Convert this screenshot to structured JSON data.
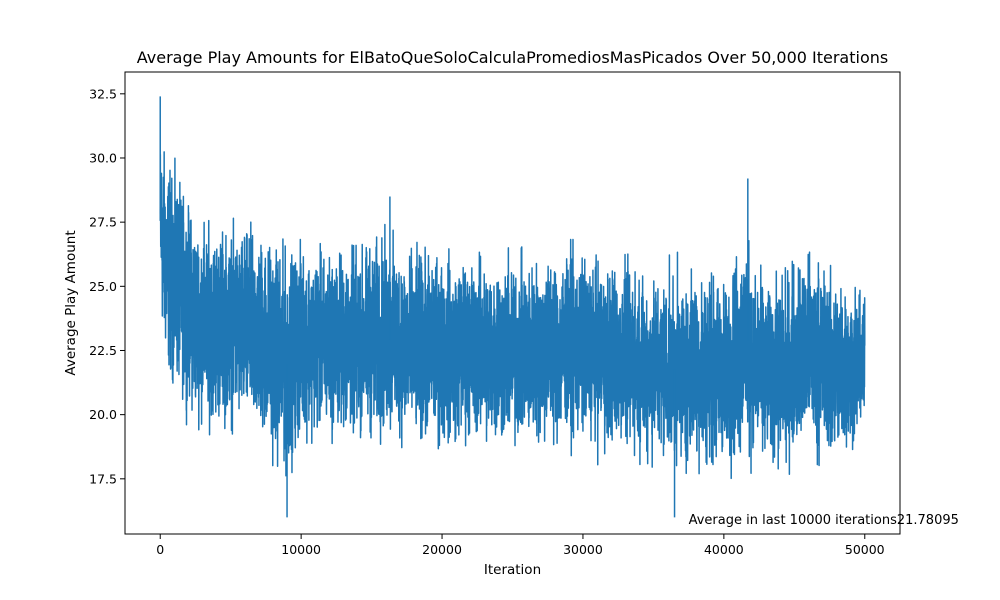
{
  "chart_data": {
    "type": "line",
    "title": "Average Play Amounts for ElBatoQueSoloCalculaPromediosMasPicados Over 50,000 Iterations",
    "xlabel": "Iteration",
    "ylabel": "Average Play Amount",
    "xlim": [
      -2500,
      52500
    ],
    "ylim": [
      15.35,
      33.35
    ],
    "xticks": [
      0,
      10000,
      20000,
      30000,
      40000,
      50000
    ],
    "xtick_labels": [
      "0",
      "10000",
      "20000",
      "30000",
      "40000",
      "50000"
    ],
    "yticks": [
      17.5,
      20.0,
      22.5,
      25.0,
      27.5,
      30.0,
      32.5
    ],
    "ytick_labels": [
      "17.5",
      "20.0",
      "22.5",
      "25.0",
      "27.5",
      "30.0",
      "32.5"
    ],
    "grid": false,
    "legend": "none",
    "series_color": "#1f77b4",
    "annotation": {
      "text": "Average in last 10000 iterations21.78095",
      "x": 37500,
      "y": 15.9
    },
    "series": [
      {
        "x_start": 0,
        "x_end": 50000,
        "envelope_x": [
          0,
          300,
          700,
          1500,
          2500,
          3500,
          5000,
          7000,
          9000,
          10000,
          12000,
          14000,
          16000,
          18000,
          20000,
          22000,
          24000,
          26000,
          28000,
          30000,
          32000,
          34000,
          36000,
          38000,
          40000,
          41700,
          42000,
          44000,
          46000,
          48000,
          50000
        ],
        "envelope_high": [
          32.4,
          31.8,
          31.3,
          30.2,
          29.0,
          28.7,
          28.6,
          28.6,
          27.9,
          27.9,
          27.6,
          27.8,
          28.5,
          27.6,
          27.6,
          27.4,
          27.6,
          27.3,
          27.7,
          27.5,
          27.3,
          27.0,
          26.6,
          27.0,
          26.6,
          29.2,
          26.5,
          26.7,
          27.6,
          26.9,
          25.4
        ],
        "envelope_low": [
          22.7,
          20.7,
          19.8,
          19.4,
          18.5,
          18.3,
          18.2,
          17.7,
          16.0,
          17.9,
          17.9,
          17.8,
          17.5,
          17.6,
          17.4,
          17.7,
          17.3,
          17.5,
          17.5,
          17.6,
          17.3,
          17.1,
          16.9,
          16.7,
          16.6,
          16.6,
          17.2,
          16.8,
          17.2,
          16.9,
          18.4
        ],
        "notable_points": [
          {
            "x": 0,
            "y": 32.4
          },
          {
            "x": 9000,
            "y": 16.0
          },
          {
            "x": 16300,
            "y": 28.5
          },
          {
            "x": 36500,
            "y": 16.0
          },
          {
            "x": 41700,
            "y": 29.2
          }
        ]
      }
    ]
  }
}
